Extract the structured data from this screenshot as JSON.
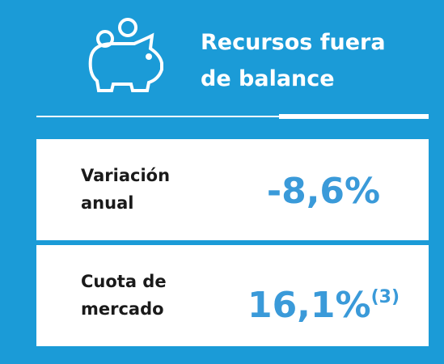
{
  "header": {
    "title": "Recursos fuera de balance"
  },
  "items": [
    {
      "label": "Variación anual",
      "value": "-8,6%"
    },
    {
      "label": "Cuota de mercado",
      "value": "16,1%",
      "note": "(3)"
    }
  ]
}
